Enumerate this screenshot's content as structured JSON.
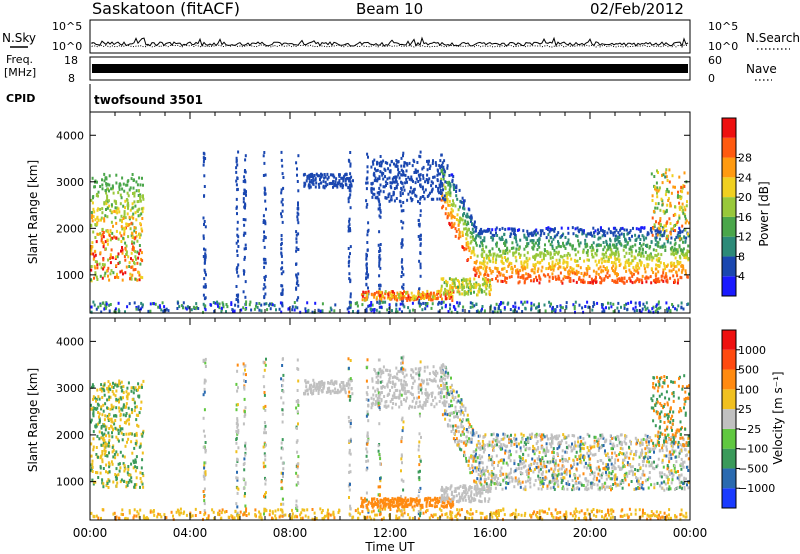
{
  "header": {
    "station": "Saskatoon (fitACF)",
    "beam": "Beam 10",
    "date": "02/Feb/2012"
  },
  "noise_panel": {
    "left_label": "N.Sky",
    "right_label": "N.Search",
    "left_ticks": [
      "10^5",
      "10^0"
    ],
    "right_ticks": [
      "10^5",
      "10^0"
    ]
  },
  "freq_panel": {
    "left_label_line1": "Freq.",
    "left_label_line2": "[MHz]",
    "left_ticks": [
      "18",
      "8"
    ],
    "right_label": "Nave",
    "right_ticks": [
      "60",
      "0"
    ]
  },
  "cpid": {
    "label": "CPID",
    "value": "twofsound 3501"
  },
  "chart_data": [
    {
      "type": "heatmap",
      "quantity": "Power",
      "ylabel": "Slant Range [km]",
      "yticks": [
        1000,
        2000,
        3000,
        4000
      ],
      "ylim": [
        180,
        4500
      ],
      "xlim_hours": [
        0,
        24
      ],
      "colorbar": {
        "label": "Power [dB]",
        "ticks": [
          "4",
          "8",
          "12",
          "16",
          "20",
          "24",
          "28"
        ],
        "colors": [
          "#1a1aff",
          "#1a47b0",
          "#2c8a78",
          "#4aa64a",
          "#98c83a",
          "#f0d020",
          "#ff9a10",
          "#ff5a10",
          "#ee1010"
        ]
      }
    },
    {
      "type": "heatmap",
      "quantity": "Velocity",
      "ylabel": "Slant Range [km]",
      "yticks": [
        1000,
        2000,
        3000,
        4000
      ],
      "ylim": [
        180,
        4500
      ],
      "xlim_hours": [
        0,
        24
      ],
      "xlabel": "Time UT",
      "xticks": [
        "00:00",
        "04:00",
        "08:00",
        "12:00",
        "16:00",
        "20:00",
        "00:00"
      ],
      "colorbar": {
        "label": "Velocity [m s⁻¹]",
        "ticks": [
          "1000",
          "500",
          "100",
          "25",
          "−25",
          "−100",
          "−500",
          "−1000"
        ],
        "colors": [
          "#1a3bff",
          "#2a6ab0",
          "#3a9a5a",
          "#60c840",
          "#c0c0c0",
          "#f0c020",
          "#ff8a10",
          "#ff4a10",
          "#ee1010"
        ]
      }
    }
  ]
}
